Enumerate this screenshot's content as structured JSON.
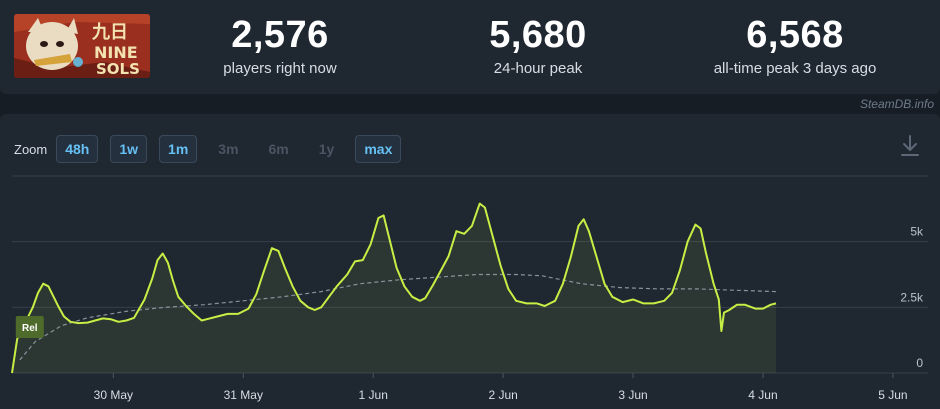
{
  "stats": [
    {
      "value": "2,576",
      "label": "players right now"
    },
    {
      "value": "5,680",
      "label": "24-hour peak"
    },
    {
      "value": "6,568",
      "label": "all-time peak 3 days ago"
    }
  ],
  "game_logo": {
    "text_top": "九日",
    "text_mid": "NINE",
    "text_bottom": "SOLS"
  },
  "credit": "SteamDB.info",
  "zoom": {
    "label": "Zoom",
    "options": [
      {
        "label": "48h",
        "enabled": true
      },
      {
        "label": "1w",
        "enabled": true
      },
      {
        "label": "1m",
        "enabled": true
      },
      {
        "label": "3m",
        "enabled": false
      },
      {
        "label": "6m",
        "enabled": false
      },
      {
        "label": "1y",
        "enabled": false
      },
      {
        "label": "max",
        "enabled": true
      }
    ]
  },
  "icons": {
    "download": "download-icon"
  },
  "colors": {
    "line": "#c6ef45",
    "average": "#8a929b",
    "grid": "#36404c",
    "zoom_active": "#66c0f4",
    "release_marker": "#4e6b2c"
  },
  "chart_data": {
    "type": "line",
    "title": "",
    "xlabel": "",
    "ylabel": "",
    "x_ticks": [
      "30 May",
      "31 May",
      "1 Jun",
      "2 Jun",
      "3 Jun",
      "4 Jun",
      "5 Jun"
    ],
    "y_ticks": [
      "0",
      "2.5k",
      "5k"
    ],
    "y_tick_values": [
      0,
      2500,
      5000
    ],
    "ylim": [
      0,
      7500
    ],
    "xlim": [
      -0.78,
      6.27
    ],
    "grid": true,
    "annotation": {
      "label": "Rel",
      "x": -0.72
    },
    "series": [
      {
        "role": "players",
        "points": [
          [
            -0.78,
            0
          ],
          [
            -0.74,
            1300
          ],
          [
            -0.7,
            1700
          ],
          [
            -0.66,
            2100
          ],
          [
            -0.62,
            2500
          ],
          [
            -0.58,
            3050
          ],
          [
            -0.54,
            3400
          ],
          [
            -0.5,
            3300
          ],
          [
            -0.46,
            2900
          ],
          [
            -0.42,
            2500
          ],
          [
            -0.38,
            2150
          ],
          [
            -0.33,
            1950
          ],
          [
            -0.27,
            1900
          ],
          [
            -0.2,
            1920
          ],
          [
            -0.14,
            2000
          ],
          [
            -0.08,
            2080
          ],
          [
            -0.02,
            2050
          ],
          [
            0.04,
            1950
          ],
          [
            0.1,
            2000
          ],
          [
            0.16,
            2100
          ],
          [
            0.24,
            2800
          ],
          [
            0.3,
            3600
          ],
          [
            0.34,
            4300
          ],
          [
            0.38,
            4550
          ],
          [
            0.42,
            4200
          ],
          [
            0.46,
            3500
          ],
          [
            0.5,
            2900
          ],
          [
            0.56,
            2550
          ],
          [
            0.62,
            2250
          ],
          [
            0.68,
            2000
          ],
          [
            0.72,
            2050
          ],
          [
            0.8,
            2150
          ],
          [
            0.88,
            2250
          ],
          [
            0.96,
            2250
          ],
          [
            1.04,
            2450
          ],
          [
            1.1,
            3000
          ],
          [
            1.16,
            3900
          ],
          [
            1.22,
            4750
          ],
          [
            1.27,
            4650
          ],
          [
            1.32,
            4000
          ],
          [
            1.38,
            3300
          ],
          [
            1.44,
            2750
          ],
          [
            1.5,
            2500
          ],
          [
            1.55,
            2400
          ],
          [
            1.6,
            2500
          ],
          [
            1.66,
            2900
          ],
          [
            1.72,
            3300
          ],
          [
            1.8,
            3750
          ],
          [
            1.86,
            4250
          ],
          [
            1.92,
            4300
          ],
          [
            1.98,
            4900
          ],
          [
            2.04,
            5900
          ],
          [
            2.08,
            6000
          ],
          [
            2.12,
            5200
          ],
          [
            2.18,
            4000
          ],
          [
            2.24,
            3300
          ],
          [
            2.3,
            2900
          ],
          [
            2.36,
            2750
          ],
          [
            2.4,
            2850
          ],
          [
            2.46,
            3350
          ],
          [
            2.52,
            3900
          ],
          [
            2.58,
            4450
          ],
          [
            2.64,
            5400
          ],
          [
            2.7,
            5300
          ],
          [
            2.76,
            5600
          ],
          [
            2.82,
            6450
          ],
          [
            2.86,
            6300
          ],
          [
            2.92,
            5200
          ],
          [
            2.98,
            4100
          ],
          [
            3.04,
            3200
          ],
          [
            3.1,
            2750
          ],
          [
            3.18,
            2650
          ],
          [
            3.26,
            2650
          ],
          [
            3.32,
            2550
          ],
          [
            3.4,
            2750
          ],
          [
            3.46,
            3400
          ],
          [
            3.52,
            4400
          ],
          [
            3.58,
            5600
          ],
          [
            3.62,
            5850
          ],
          [
            3.66,
            5400
          ],
          [
            3.72,
            4400
          ],
          [
            3.78,
            3400
          ],
          [
            3.84,
            2900
          ],
          [
            3.92,
            2700
          ],
          [
            4.0,
            2800
          ],
          [
            4.08,
            2650
          ],
          [
            4.16,
            2650
          ],
          [
            4.24,
            2750
          ],
          [
            4.3,
            3050
          ],
          [
            4.36,
            3900
          ],
          [
            4.42,
            5000
          ],
          [
            4.48,
            5650
          ],
          [
            4.52,
            5500
          ],
          [
            4.56,
            4600
          ],
          [
            4.62,
            3400
          ],
          [
            4.66,
            2800
          ],
          [
            4.68,
            1600
          ],
          [
            4.7,
            2300
          ],
          [
            4.74,
            2400
          ],
          [
            4.8,
            2600
          ],
          [
            4.86,
            2600
          ],
          [
            4.94,
            2450
          ],
          [
            5.0,
            2450
          ],
          [
            5.06,
            2600
          ],
          [
            5.1,
            2650
          ]
        ]
      },
      {
        "role": "average",
        "points": [
          [
            -0.72,
            500
          ],
          [
            -0.6,
            1200
          ],
          [
            -0.4,
            1800
          ],
          [
            -0.2,
            2100
          ],
          [
            0.1,
            2350
          ],
          [
            0.4,
            2500
          ],
          [
            0.7,
            2600
          ],
          [
            1.0,
            2750
          ],
          [
            1.3,
            2900
          ],
          [
            1.6,
            3100
          ],
          [
            1.9,
            3400
          ],
          [
            2.2,
            3550
          ],
          [
            2.5,
            3650
          ],
          [
            2.8,
            3750
          ],
          [
            3.1,
            3750
          ],
          [
            3.3,
            3700
          ],
          [
            3.6,
            3400
          ],
          [
            3.9,
            3250
          ],
          [
            4.2,
            3200
          ],
          [
            4.5,
            3200
          ],
          [
            4.8,
            3150
          ],
          [
            5.1,
            3100
          ]
        ]
      }
    ]
  }
}
